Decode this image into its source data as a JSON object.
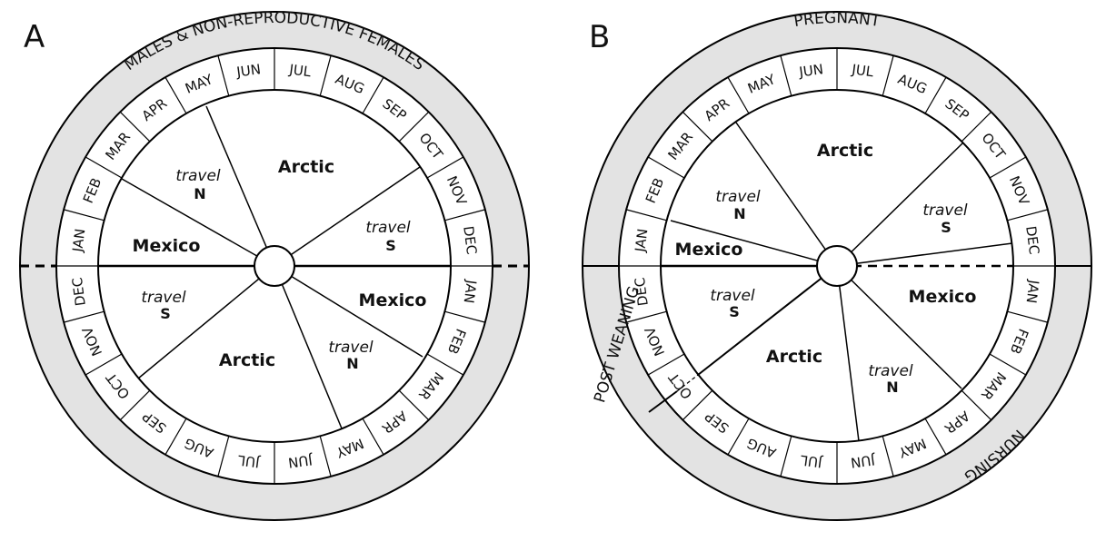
{
  "panels": [
    {
      "id": "A",
      "letter": "A",
      "outer_label": "MALES & NON-REPRODUCTIVE FEMALES",
      "months_top": [
        "JAN",
        "FEB",
        "MAR",
        "APR",
        "MAY",
        "JUN",
        "JUL",
        "AUG",
        "SEP",
        "OCT",
        "NOV",
        "DEC"
      ],
      "months_bottom": [
        "JAN",
        "FEB",
        "MAR",
        "APR",
        "MAY",
        "JUN",
        "JUL",
        "AUG",
        "SEP",
        "OCT",
        "NOV",
        "DEC"
      ],
      "regions": [
        {
          "key": "mexico-top-left",
          "label": "Mexico"
        },
        {
          "key": "travel-n-top",
          "travel": "travel",
          "direction": "N"
        },
        {
          "key": "arctic-top",
          "label": "Arctic"
        },
        {
          "key": "travel-s-top",
          "travel": "travel",
          "direction": "S"
        },
        {
          "key": "mexico-bottom-right",
          "label": "Mexico"
        },
        {
          "key": "travel-n-bottom",
          "travel": "travel",
          "direction": "N"
        },
        {
          "key": "arctic-bottom",
          "label": "Arctic"
        },
        {
          "key": "travel-s-bottom",
          "travel": "travel",
          "direction": "S"
        }
      ]
    },
    {
      "id": "B",
      "letter": "B",
      "outer_label_top": "PREGNANT",
      "outer_label_bottom": "NURSING",
      "outer_label_left": "POST WEANING",
      "months_top": [
        "JAN",
        "FEB",
        "MAR",
        "APR",
        "MAY",
        "JUN",
        "JUL",
        "AUG",
        "SEP",
        "OCT",
        "NOV",
        "DEC"
      ],
      "months_bottom": [
        "JAN",
        "FEB",
        "MAR",
        "APR",
        "MAY",
        "JUN",
        "JUL",
        "AUG",
        "SEP",
        "OCT",
        "NOV",
        "DEC"
      ],
      "regions": [
        {
          "key": "mexico-top-left",
          "label": "Mexico"
        },
        {
          "key": "travel-n-top",
          "travel": "travel",
          "direction": "N"
        },
        {
          "key": "arctic-top",
          "label": "Arctic"
        },
        {
          "key": "travel-s-top",
          "travel": "travel",
          "direction": "S"
        },
        {
          "key": "mexico-bottom-right",
          "label": "Mexico"
        },
        {
          "key": "travel-n-bottom",
          "travel": "travel",
          "direction": "N"
        },
        {
          "key": "arctic-bottom",
          "label": "Arctic"
        },
        {
          "key": "travel-s-bottom",
          "travel": "travel",
          "direction": "S"
        }
      ]
    }
  ],
  "colors": {
    "ring_fill": "#e3e3e3",
    "stroke": "#000000",
    "background": "#ffffff"
  }
}
